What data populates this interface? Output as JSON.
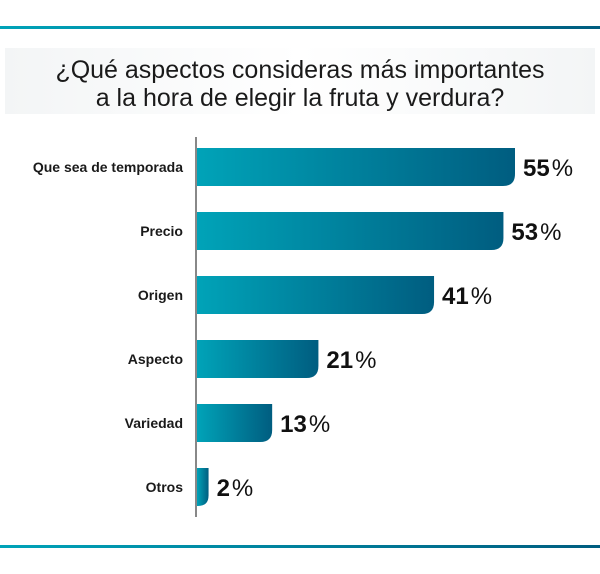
{
  "chart_data": {
    "type": "bar",
    "orientation": "horizontal",
    "title": "¿Qué aspectos consideras más importantes a la hora de elegir la fruta y verdura?",
    "title_lines": [
      "¿Qué aspectos consideras más importantes",
      "a la hora de elegir la fruta y verdura?"
    ],
    "categories": [
      "Que sea de temporada",
      "Precio",
      "Origen",
      "Aspecto",
      "Variedad",
      "Otros"
    ],
    "values": [
      55,
      53,
      41,
      21,
      13,
      2
    ],
    "unit": "%",
    "xlim": [
      0,
      55
    ],
    "grid": false,
    "colors": {
      "bar_start": "#00a3b8",
      "bar_end": "#005d80",
      "axis": "#888888"
    }
  }
}
